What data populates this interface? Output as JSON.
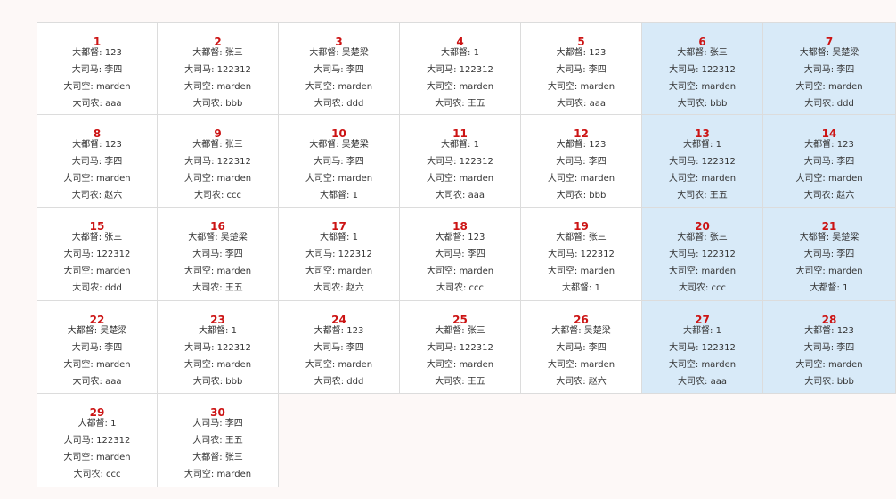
{
  "calendar": {
    "days": [
      {
        "day": "1",
        "lines": [
          "大都督: 123",
          "大司马: 李四",
          "大司空: marden",
          "大司农: aaa"
        ]
      },
      {
        "day": "2",
        "lines": [
          "大都督: 张三",
          "大司马: 122312",
          "大司空: marden",
          "大司农: bbb"
        ]
      },
      {
        "day": "3",
        "lines": [
          "大都督: 吴楚梁",
          "大司马: 李四",
          "大司空: marden",
          "大司农: ddd"
        ]
      },
      {
        "day": "4",
        "lines": [
          "大都督: 1",
          "大司马: 122312",
          "大司空: marden",
          "大司农: 王五"
        ]
      },
      {
        "day": "5",
        "lines": [
          "大都督: 123",
          "大司马: 李四",
          "大司空: marden",
          "大司农: aaa"
        ]
      },
      {
        "day": "6",
        "lines": [
          "大都督: 张三",
          "大司马: 122312",
          "大司空: marden",
          "大司农: bbb"
        ]
      },
      {
        "day": "7",
        "lines": [
          "大都督: 吴楚梁",
          "大司马: 李四",
          "大司空: marden",
          "大司农: ddd"
        ]
      },
      {
        "day": "8",
        "lines": [
          "大都督: 123",
          "大司马: 李四",
          "大司空: marden",
          "大司农: 赵六"
        ]
      },
      {
        "day": "9",
        "lines": [
          "大都督: 张三",
          "大司马: 122312",
          "大司空: marden",
          "大司农: ccc"
        ]
      },
      {
        "day": "10",
        "lines": [
          "大都督: 吴楚梁",
          "大司马: 李四",
          "大司空: marden",
          "大都督: 1"
        ]
      },
      {
        "day": "11",
        "lines": [
          "大都督: 1",
          "大司马: 122312",
          "大司空: marden",
          "大司农: aaa"
        ]
      },
      {
        "day": "12",
        "lines": [
          "大都督: 123",
          "大司马: 李四",
          "大司空: marden",
          "大司农: bbb"
        ]
      },
      {
        "day": "13",
        "lines": [
          "大都督: 1",
          "大司马: 122312",
          "大司空: marden",
          "大司农: 王五"
        ]
      },
      {
        "day": "14",
        "lines": [
          "大都督: 123",
          "大司马: 李四",
          "大司空: marden",
          "大司农: 赵六"
        ]
      },
      {
        "day": "15",
        "lines": [
          "大都督: 张三",
          "大司马: 122312",
          "大司空: marden",
          "大司农: ddd"
        ]
      },
      {
        "day": "16",
        "lines": [
          "大都督: 吴楚梁",
          "大司马: 李四",
          "大司空: marden",
          "大司农: 王五"
        ]
      },
      {
        "day": "17",
        "lines": [
          "大都督: 1",
          "大司马: 122312",
          "大司空: marden",
          "大司农: 赵六"
        ]
      },
      {
        "day": "18",
        "lines": [
          "大都督: 123",
          "大司马: 李四",
          "大司空: marden",
          "大司农: ccc"
        ]
      },
      {
        "day": "19",
        "lines": [
          "大都督: 张三",
          "大司马: 122312",
          "大司空: marden",
          "大都督: 1"
        ]
      },
      {
        "day": "20",
        "lines": [
          "大都督: 张三",
          "大司马: 122312",
          "大司空: marden",
          "大司农: ccc"
        ]
      },
      {
        "day": "21",
        "lines": [
          "大都督: 吴楚梁",
          "大司马: 李四",
          "大司空: marden",
          "大都督: 1"
        ]
      },
      {
        "day": "22",
        "lines": [
          "大都督: 吴楚梁",
          "大司马: 李四",
          "大司空: marden",
          "大司农: aaa"
        ]
      },
      {
        "day": "23",
        "lines": [
          "大都督: 1",
          "大司马: 122312",
          "大司空: marden",
          "大司农: bbb"
        ]
      },
      {
        "day": "24",
        "lines": [
          "大都督: 123",
          "大司马: 李四",
          "大司空: marden",
          "大司农: ddd"
        ]
      },
      {
        "day": "25",
        "lines": [
          "大都督: 张三",
          "大司马: 122312",
          "大司空: marden",
          "大司农: 王五"
        ]
      },
      {
        "day": "26",
        "lines": [
          "大都督: 吴楚梁",
          "大司马: 李四",
          "大司空: marden",
          "大司农: 赵六"
        ]
      },
      {
        "day": "27",
        "lines": [
          "大都督: 1",
          "大司马: 122312",
          "大司空: marden",
          "大司农: aaa"
        ]
      },
      {
        "day": "28",
        "lines": [
          "大都督: 123",
          "大司马: 李四",
          "大司空: marden",
          "大司农: bbb"
        ]
      },
      {
        "day": "29",
        "lines": [
          "大都督: 1",
          "大司马: 122312",
          "大司空: marden",
          "大司农: ccc"
        ]
      },
      {
        "day": "30",
        "lines": [
          "大司马: 李四",
          "大司农: 王五",
          "大都督: 张三",
          "大司空: marden"
        ]
      }
    ]
  },
  "colors": {
    "day_number": "#cc1414",
    "weekend_background": "#d8eaf8",
    "cell_background": "#ffffff",
    "border": "#dcdcdc",
    "page_background": "#fdf8f7"
  }
}
